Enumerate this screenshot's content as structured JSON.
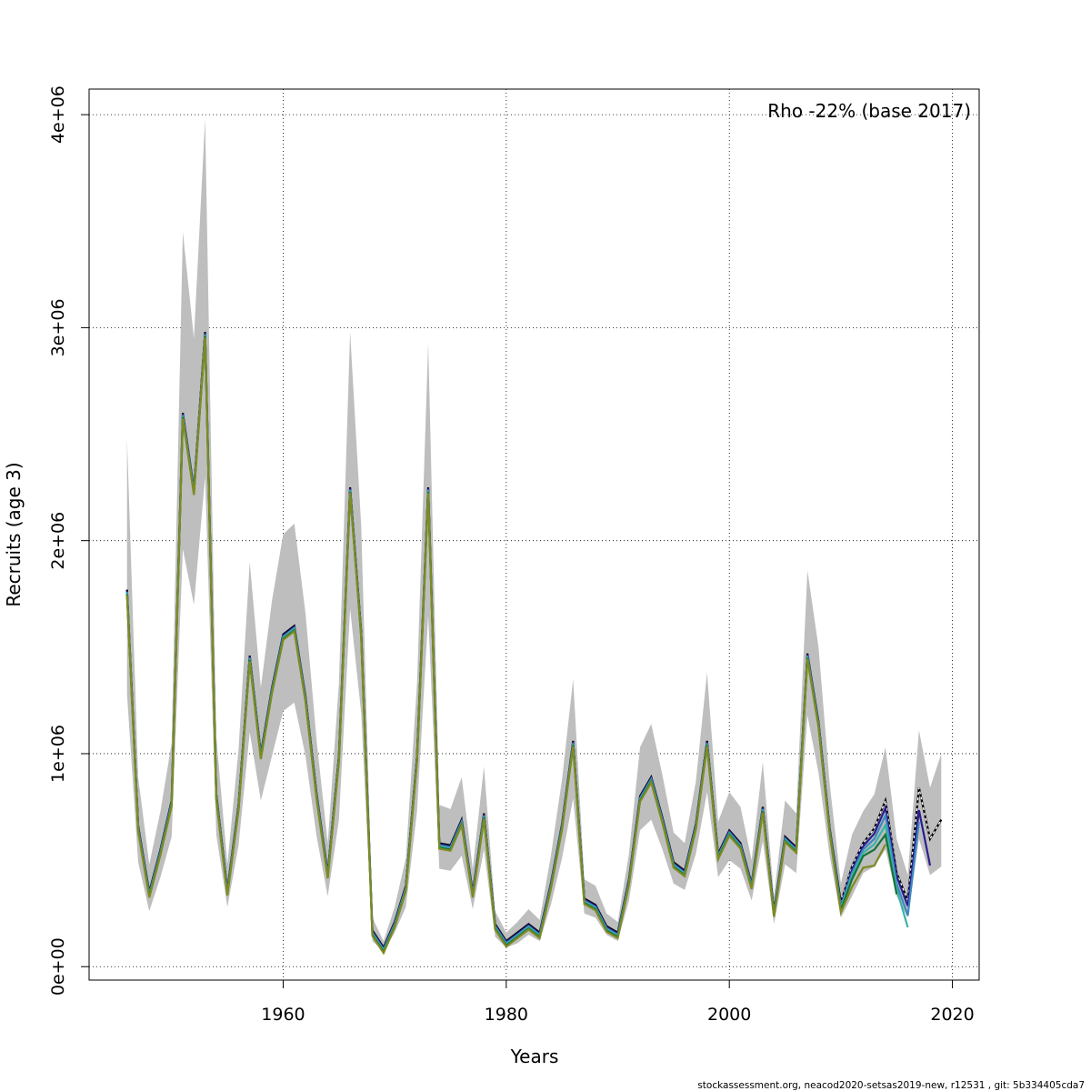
{
  "chart_data": {
    "type": "line",
    "title": "",
    "xlabel": "Years",
    "ylabel": "Recruits (age 3)",
    "annotation": "Rho -22% (base 2017)",
    "footer": "stockassessment.org, neacod2020-setsas2019-new, r12531 , git: 5b334405cda7",
    "xlim": [
      1942.6,
      2022.4
    ],
    "ylim": [
      -63000,
      4120000
    ],
    "x_ticks": [
      1960,
      1980,
      2000,
      2020
    ],
    "x_tick_labels": [
      "1960",
      "1980",
      "2000",
      "2020"
    ],
    "y_ticks": [
      0,
      1000000,
      2000000,
      3000000,
      4000000
    ],
    "y_tick_labels": [
      "0e+00",
      "1e+06",
      "2e+06",
      "3e+06",
      "4e+06"
    ],
    "grid": true,
    "colors": {
      "band": "#bebebe",
      "base": "#000000",
      "peels": [
        "#2a1d8f",
        "#3d88c0",
        "#39b3a6",
        "#16733b",
        "#7f8a21"
      ]
    },
    "base_series": {
      "x": [
        1946,
        1947,
        1948,
        1949,
        1950,
        1951,
        1952,
        1953,
        1954,
        1955,
        1956,
        1957,
        1958,
        1959,
        1960,
        1961,
        1962,
        1963,
        1964,
        1965,
        1966,
        1967,
        1968,
        1969,
        1970,
        1971,
        1972,
        1973,
        1974,
        1975,
        1976,
        1977,
        1978,
        1979,
        1980,
        1981,
        1982,
        1983,
        1984,
        1985,
        1986,
        1987,
        1988,
        1989,
        1990,
        1991,
        1992,
        1993,
        1994,
        1995,
        1996,
        1997,
        1998,
        1999,
        2000,
        2001,
        2002,
        2003,
        2004,
        2005,
        2006,
        2007,
        2008,
        2009,
        2010,
        2011,
        2012,
        2013,
        2014,
        2015,
        2016,
        2017,
        2018,
        2019
      ],
      "y": [
        1770000,
        660000,
        350000,
        550000,
        780000,
        2600000,
        2240000,
        2980000,
        810000,
        360000,
        760000,
        1460000,
        1000000,
        1310000,
        1560000,
        1600000,
        1270000,
        810000,
        440000,
        990000,
        2250000,
        1570000,
        170000,
        90000,
        210000,
        380000,
        990000,
        2250000,
        580000,
        570000,
        690000,
        350000,
        720000,
        200000,
        120000,
        160000,
        200000,
        160000,
        390000,
        670000,
        1060000,
        320000,
        290000,
        190000,
        160000,
        410000,
        800000,
        890000,
        700000,
        490000,
        450000,
        670000,
        1060000,
        530000,
        640000,
        580000,
        390000,
        750000,
        260000,
        610000,
        560000,
        1470000,
        1150000,
        650000,
        300000,
        470000,
        580000,
        650000,
        780000,
        440000,
        310000,
        840000,
        600000,
        690000
      ],
      "lower": [
        1280000,
        490000,
        260000,
        420000,
        610000,
        1960000,
        1700000,
        2300000,
        620000,
        280000,
        570000,
        1100000,
        780000,
        990000,
        1200000,
        1240000,
        990000,
        610000,
        330000,
        690000,
        1680000,
        1190000,
        120000,
        70000,
        160000,
        280000,
        730000,
        1650000,
        460000,
        450000,
        520000,
        270000,
        550000,
        140000,
        90000,
        110000,
        150000,
        120000,
        290000,
        510000,
        790000,
        250000,
        230000,
        150000,
        120000,
        310000,
        640000,
        690000,
        550000,
        390000,
        360000,
        530000,
        820000,
        420000,
        500000,
        460000,
        310000,
        590000,
        200000,
        480000,
        440000,
        1180000,
        910000,
        520000,
        230000,
        330000,
        440000,
        470000,
        550000,
        330000,
        230000,
        600000,
        430000,
        470000
      ],
      "upper": [
        2480000,
        890000,
        480000,
        730000,
        1050000,
        3450000,
        2950000,
        3980000,
        1080000,
        480000,
        1020000,
        1900000,
        1310000,
        1720000,
        2030000,
        2080000,
        1660000,
        1060000,
        580000,
        1330000,
        2980000,
        2070000,
        230000,
        120000,
        280000,
        510000,
        1330000,
        2930000,
        760000,
        740000,
        890000,
        460000,
        940000,
        260000,
        160000,
        210000,
        270000,
        220000,
        520000,
        880000,
        1350000,
        410000,
        380000,
        250000,
        210000,
        530000,
        1030000,
        1140000,
        900000,
        630000,
        580000,
        870000,
        1380000,
        680000,
        820000,
        750000,
        500000,
        960000,
        330000,
        780000,
        720000,
        1860000,
        1500000,
        860000,
        390000,
        620000,
        730000,
        810000,
        1030000,
        600000,
        430000,
        1110000,
        840000,
        1000000
      ]
    },
    "peels": [
      {
        "end_year": 2018,
        "y_tail": [
          290000,
          460000,
          570000,
          630000,
          750000,
          430000,
          290000,
          740000,
          480000
        ]
      },
      {
        "end_year": 2017,
        "y_tail": [
          290000,
          450000,
          560000,
          610000,
          720000,
          400000,
          250000,
          690000
        ]
      },
      {
        "end_year": 2016,
        "y_tail": [
          290000,
          440000,
          550000,
          590000,
          680000,
          380000,
          200000
        ]
      },
      {
        "end_year": 2015,
        "y_tail": [
          285000,
          430000,
          540000,
          570000,
          640000,
          360000
        ]
      },
      {
        "end_year": 2014,
        "y_tail": [
          280000,
          400000,
          490000,
          500000,
          600000
        ]
      }
    ]
  }
}
